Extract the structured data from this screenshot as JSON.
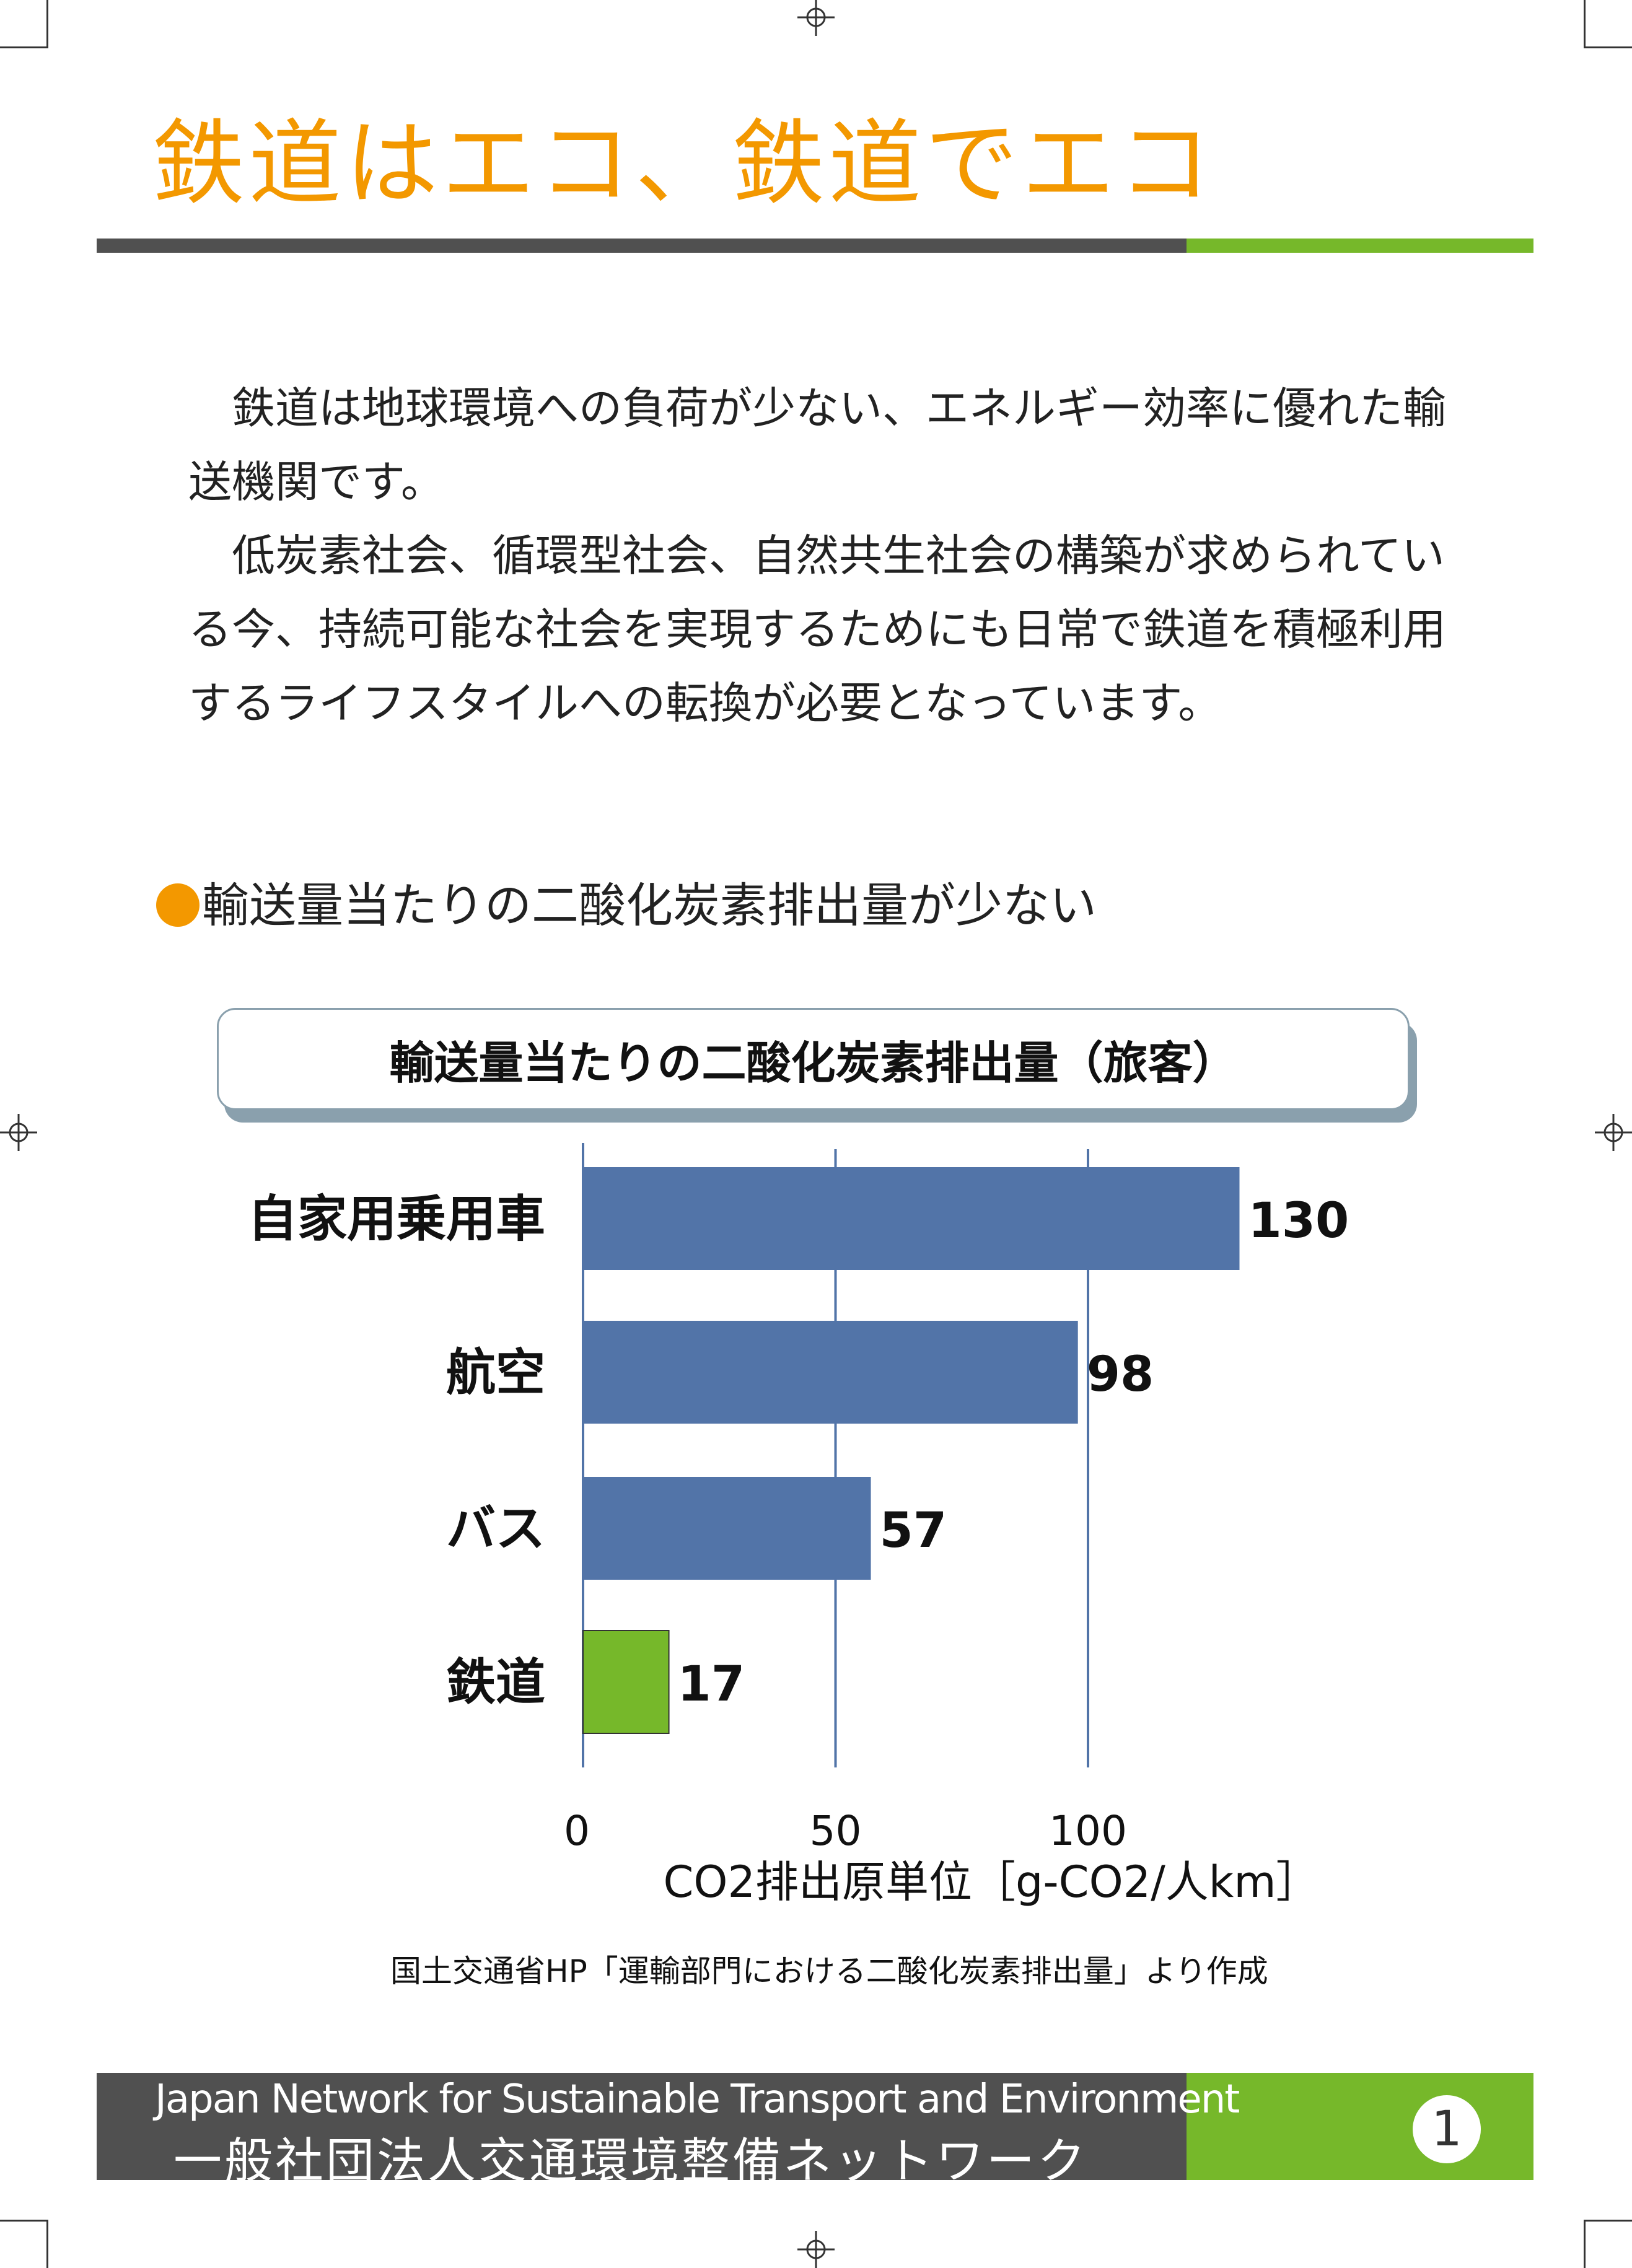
{
  "page_title": "鉄道はエコ、鉄道でエコ",
  "intro_paragraphs": [
    "鉄道は地球環境への負荷が少ない、エネルギー効率に優れた輸送機関です。",
    "低炭素社会、循環型社会、自然共生社会の構築が求められている今、持続可能な社会を実現するためにも日常で鉄道を積極利用するライフスタイルへの転換が必要となっています。"
  ],
  "section_heading": "輸送量当たりの二酸化炭素排出量が少ない",
  "colors": {
    "accent_orange": "#f39800",
    "bar_blue": "#5274a8",
    "bar_green": "#76b82a",
    "footer_dark": "#505050",
    "footer_green": "#76b82a"
  },
  "chart_data": {
    "type": "bar",
    "orientation": "horizontal",
    "title": "輸送量当たりの二酸化炭素排出量（旅客）",
    "categories": [
      "自家用乗用車",
      "航空",
      "バス",
      "鉄道"
    ],
    "values": [
      130,
      98,
      57,
      17
    ],
    "bar_colors": [
      "#5274a8",
      "#5274a8",
      "#5274a8",
      "#76b82a"
    ],
    "xlabel": "CO2排出原単位［g-CO2/人km］",
    "xticks": [
      0,
      50,
      100
    ],
    "xlim": [
      0,
      130
    ],
    "grid": true,
    "data_labels": true
  },
  "source_note": "国土交通省HP「運輸部門における二酸化炭素排出量」より作成",
  "footer": {
    "org_en": "Japan Network for Sustainable Transport and Environment",
    "org_ja": "一般社団法人交通環境整備ネットワーク",
    "page_number": "1"
  }
}
